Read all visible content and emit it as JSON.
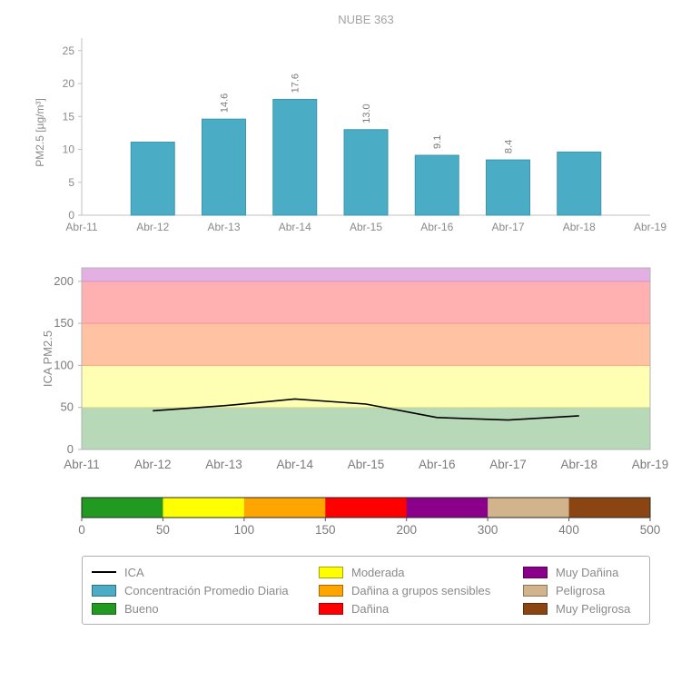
{
  "title": "NUBE 363",
  "colors": {
    "bar_teal": "#4bacc6",
    "line_black": "#000000",
    "bueno_green": "#229a22",
    "moderada_yellow": "#ffff00",
    "danina_sensibles_orange": "#ffa500",
    "danina_red": "#ff0000",
    "muy_danina_purple": "#8b008b",
    "peligrosa_tan": "#d2b48c",
    "muy_peligrosa_brown": "#8b4513"
  },
  "chart_data": [
    {
      "type": "bar",
      "title": "NUBE 363",
      "ylabel": "PM2.5 [µg/m³]",
      "categories": [
        "Abr-11",
        "Abr-12",
        "Abr-13",
        "Abr-14",
        "Abr-15",
        "Abr-16",
        "Abr-17",
        "Abr-18",
        "Abr-19"
      ],
      "values": [
        null,
        11.1,
        14.6,
        17.6,
        13.0,
        9.1,
        8.4,
        9.6,
        null
      ],
      "bar_labels": [
        null,
        null,
        "14.6",
        "17.6",
        "13.0",
        "9.1",
        "8.4",
        null,
        null
      ],
      "ylim": [
        0,
        26.9
      ],
      "yticks": [
        0,
        5,
        10,
        15,
        20,
        25
      ],
      "grid": false,
      "bar_color": "#4bacc6",
      "bar_edge_color": "#3c96ad",
      "axis_color": "#c2c2c2"
    },
    {
      "type": "line",
      "ylabel": "ICA PM2.5",
      "categories": [
        "Abr-11",
        "Abr-12",
        "Abr-13",
        "Abr-14",
        "Abr-15",
        "Abr-16",
        "Abr-17",
        "Abr-18",
        "Abr-19"
      ],
      "ylim": [
        0,
        216
      ],
      "yticks": [
        0,
        50,
        100,
        150,
        200
      ],
      "grid": false,
      "bands": [
        {
          "from": 0,
          "to": 50,
          "label": "Bueno",
          "color": "#b7d9b7",
          "edge": "#93c493"
        },
        {
          "from": 50,
          "to": 100,
          "label": "Moderada",
          "color": "#ffffb3",
          "edge": "#e3e38d"
        },
        {
          "from": 100,
          "to": 150,
          "label": "Dañina a grupos sensibles",
          "color": "#ffc3a3",
          "edge": "#ffa87f"
        },
        {
          "from": 150,
          "to": 200,
          "label": "Dañina",
          "color": "#ffb0b0",
          "edge": "#ff9494"
        },
        {
          "from": 200,
          "to": 216,
          "label": "Muy Dañina",
          "color": "#e3b0e3",
          "edge": "#cf97cf"
        }
      ],
      "series": [
        {
          "name": "ICA",
          "color": "#000000",
          "x": [
            "Abr-12",
            "Abr-13",
            "Abr-14",
            "Abr-15",
            "Abr-16",
            "Abr-17",
            "Abr-18"
          ],
          "values": [
            46,
            52,
            60,
            54,
            38,
            35,
            40
          ]
        }
      ]
    },
    {
      "type": "colorbar",
      "ticks": [
        "0",
        "50",
        "100",
        "150",
        "200",
        "300",
        "400",
        "500"
      ],
      "segments": [
        {
          "label": "Bueno",
          "color": "#229a22"
        },
        {
          "label": "Moderada",
          "color": "#ffff00"
        },
        {
          "label": "Dañina a grupos sensibles",
          "color": "#ffa500"
        },
        {
          "label": "Dañina",
          "color": "#ff0000"
        },
        {
          "label": "Muy Dañina",
          "color": "#8b008b"
        },
        {
          "label": "Peligrosa",
          "color": "#d2b48c"
        },
        {
          "label": "Muy Peligrosa",
          "color": "#8b4513"
        }
      ]
    }
  ],
  "legend": {
    "columns": [
      [
        {
          "label": "ICA",
          "swatch": "line",
          "color": "#000000"
        },
        {
          "label": "Concentración Promedio Diaria",
          "swatch": "rect",
          "color": "#4bacc6"
        },
        {
          "label": "Bueno",
          "swatch": "rect",
          "color": "#229a22"
        }
      ],
      [
        {
          "label": "Moderada",
          "swatch": "rect",
          "color": "#ffff00"
        },
        {
          "label": "Dañina a grupos sensibles",
          "swatch": "rect",
          "color": "#ffa500"
        },
        {
          "label": "Dañina",
          "swatch": "rect",
          "color": "#ff0000"
        }
      ],
      [
        {
          "label": "Muy Dañina",
          "swatch": "rect",
          "color": "#8b008b"
        },
        {
          "label": "Peligrosa",
          "swatch": "rect",
          "color": "#d2b48c"
        },
        {
          "label": "Muy Peligrosa",
          "swatch": "rect",
          "color": "#8b4513"
        }
      ]
    ]
  }
}
